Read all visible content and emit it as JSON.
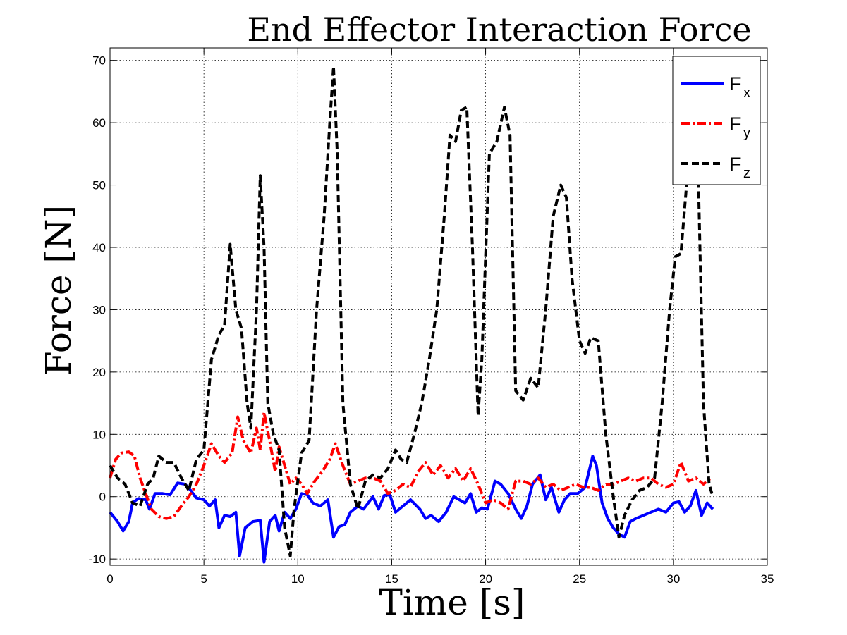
{
  "chart_data": {
    "type": "line",
    "title": "End Effector Interaction Force",
    "xlabel": "Time [s]",
    "ylabel": "Force [N]",
    "xlim": [
      0,
      35
    ],
    "ylim": [
      -11,
      72
    ],
    "xticks": [
      0,
      5,
      10,
      15,
      20,
      25,
      30,
      35
    ],
    "yticks": [
      -10,
      0,
      10,
      20,
      30,
      40,
      50,
      60,
      70
    ],
    "grid": true,
    "legend_position": "top-right",
    "series": [
      {
        "name": "Fx",
        "label_main": "F",
        "label_sub": "x",
        "color": "#0000ff",
        "dash": "solid",
        "points": [
          [
            0,
            -2.5
          ],
          [
            0.4,
            -4
          ],
          [
            0.7,
            -5.5
          ],
          [
            1,
            -4
          ],
          [
            1.2,
            -1
          ],
          [
            1.5,
            -0.3
          ],
          [
            1.9,
            -0.5
          ],
          [
            2.1,
            -2
          ],
          [
            2.4,
            0.5
          ],
          [
            2.8,
            0.5
          ],
          [
            3.2,
            0.3
          ],
          [
            3.6,
            2.2
          ],
          [
            4.0,
            2.0
          ],
          [
            4.3,
            1.0
          ],
          [
            4.6,
            -0.2
          ],
          [
            5.0,
            -0.5
          ],
          [
            5.3,
            -1.5
          ],
          [
            5.6,
            -0.5
          ],
          [
            5.8,
            -5.0
          ],
          [
            6.1,
            -3
          ],
          [
            6.4,
            -3.2
          ],
          [
            6.7,
            -2.5
          ],
          [
            6.9,
            -9.5
          ],
          [
            7.2,
            -5
          ],
          [
            7.6,
            -4.0
          ],
          [
            8.0,
            -3.8
          ],
          [
            8.2,
            -10.5
          ],
          [
            8.5,
            -4.0
          ],
          [
            8.8,
            -3.0
          ],
          [
            9.0,
            -5.5
          ],
          [
            9.3,
            -2.5
          ],
          [
            9.6,
            -3.5
          ],
          [
            9.9,
            -2.0
          ],
          [
            10.2,
            0.5
          ],
          [
            10.5,
            0.3
          ],
          [
            10.8,
            -1.0
          ],
          [
            11.2,
            -1.5
          ],
          [
            11.6,
            -0.5
          ],
          [
            11.9,
            -6.5
          ],
          [
            12.2,
            -4.8
          ],
          [
            12.5,
            -4.5
          ],
          [
            12.8,
            -2.5
          ],
          [
            13.2,
            -1.5
          ],
          [
            13.5,
            -2.0
          ],
          [
            14.0,
            0
          ],
          [
            14.3,
            -2.0
          ],
          [
            14.6,
            0.2
          ],
          [
            14.9,
            0.3
          ],
          [
            15.2,
            -2.5
          ],
          [
            15.6,
            -1.5
          ],
          [
            16.0,
            -0.5
          ],
          [
            16.5,
            -2.0
          ],
          [
            16.8,
            -3.5
          ],
          [
            17.1,
            -3.0
          ],
          [
            17.5,
            -4.0
          ],
          [
            17.9,
            -2.5
          ],
          [
            18.3,
            0
          ],
          [
            18.6,
            -0.5
          ],
          [
            18.9,
            -1.0
          ],
          [
            19.2,
            0.5
          ],
          [
            19.5,
            -2.5
          ],
          [
            19.8,
            -1.8
          ],
          [
            20.1,
            -2.0
          ],
          [
            20.5,
            2.5
          ],
          [
            20.8,
            2.0
          ],
          [
            21.2,
            0.5
          ],
          [
            21.6,
            -2.0
          ],
          [
            21.9,
            -3.5
          ],
          [
            22.2,
            -1.5
          ],
          [
            22.5,
            2.0
          ],
          [
            22.9,
            3.5
          ],
          [
            23.2,
            -0.5
          ],
          [
            23.5,
            1.5
          ],
          [
            23.9,
            -2.5
          ],
          [
            24.2,
            -0.5
          ],
          [
            24.5,
            0.5
          ],
          [
            24.9,
            0.5
          ],
          [
            25.3,
            1.5
          ],
          [
            25.7,
            6.5
          ],
          [
            25.9,
            5.0
          ],
          [
            26.2,
            -1.0
          ],
          [
            26.5,
            -3.5
          ],
          [
            26.8,
            -5.0
          ],
          [
            27.1,
            -6.0
          ],
          [
            27.4,
            -6.5
          ],
          [
            27.7,
            -4.0
          ],
          [
            28.0,
            -3.5
          ],
          [
            28.4,
            -3.0
          ],
          [
            28.8,
            -2.5
          ],
          [
            29.2,
            -2.0
          ],
          [
            29.6,
            -2.5
          ],
          [
            30.0,
            -1.0
          ],
          [
            30.3,
            -0.8
          ],
          [
            30.6,
            -2.5
          ],
          [
            30.9,
            -1.5
          ],
          [
            31.2,
            1.0
          ],
          [
            31.5,
            -3.0
          ],
          [
            31.8,
            -1.0
          ],
          [
            32.1,
            -2.0
          ]
        ]
      },
      {
        "name": "Fy",
        "label_main": "F",
        "label_sub": "y",
        "color": "#ff0000",
        "dash": "dashdot",
        "points": [
          [
            0,
            3
          ],
          [
            0.3,
            6
          ],
          [
            0.6,
            7
          ],
          [
            1.0,
            7.2
          ],
          [
            1.3,
            6.5
          ],
          [
            1.6,
            3
          ],
          [
            1.9,
            0.5
          ],
          [
            2.2,
            -2
          ],
          [
            2.6,
            -3.2
          ],
          [
            3.0,
            -3.5
          ],
          [
            3.4,
            -3.2
          ],
          [
            3.8,
            -1.5
          ],
          [
            4.2,
            0
          ],
          [
            4.6,
            2
          ],
          [
            5.0,
            5
          ],
          [
            5.4,
            8.5
          ],
          [
            5.8,
            6.5
          ],
          [
            6.1,
            5.5
          ],
          [
            6.5,
            7
          ],
          [
            6.8,
            12.8
          ],
          [
            7.1,
            9
          ],
          [
            7.5,
            7
          ],
          [
            7.8,
            11
          ],
          [
            8.0,
            7.5
          ],
          [
            8.2,
            13.5
          ],
          [
            8.5,
            9
          ],
          [
            8.8,
            4
          ],
          [
            9.0,
            8
          ],
          [
            9.3,
            5
          ],
          [
            9.6,
            2
          ],
          [
            9.9,
            3
          ],
          [
            10.2,
            2
          ],
          [
            10.5,
            0.5
          ],
          [
            10.9,
            2.5
          ],
          [
            11.3,
            4
          ],
          [
            11.7,
            6
          ],
          [
            12.0,
            8.5
          ],
          [
            12.4,
            5
          ],
          [
            12.8,
            2
          ],
          [
            13.2,
            2.5
          ],
          [
            13.6,
            3
          ],
          [
            14.0,
            3
          ],
          [
            14.4,
            2.5
          ],
          [
            14.8,
            0.5
          ],
          [
            15.2,
            1
          ],
          [
            15.6,
            2
          ],
          [
            16.0,
            1.5
          ],
          [
            16.4,
            4
          ],
          [
            16.8,
            5.5
          ],
          [
            17.2,
            3.5
          ],
          [
            17.6,
            5
          ],
          [
            18.0,
            3
          ],
          [
            18.4,
            4.5
          ],
          [
            18.8,
            2.5
          ],
          [
            19.2,
            4.5
          ],
          [
            19.6,
            2
          ],
          [
            20.0,
            -1
          ],
          [
            20.4,
            -0.5
          ],
          [
            20.8,
            -1
          ],
          [
            21.2,
            -2
          ],
          [
            21.6,
            2.5
          ],
          [
            22.0,
            2.5
          ],
          [
            22.4,
            2
          ],
          [
            22.8,
            3
          ],
          [
            23.2,
            1.5
          ],
          [
            23.6,
            2
          ],
          [
            24.0,
            1
          ],
          [
            24.4,
            1.5
          ],
          [
            24.8,
            2
          ],
          [
            25.2,
            1.5
          ],
          [
            25.6,
            1.5
          ],
          [
            26.0,
            1
          ],
          [
            26.4,
            2
          ],
          [
            26.8,
            2
          ],
          [
            27.2,
            2.5
          ],
          [
            27.6,
            3
          ],
          [
            28.0,
            2.5
          ],
          [
            28.4,
            3
          ],
          [
            28.8,
            3
          ],
          [
            29.2,
            2
          ],
          [
            29.6,
            1.5
          ],
          [
            30.0,
            2
          ],
          [
            30.4,
            5.5
          ],
          [
            30.8,
            2.5
          ],
          [
            31.2,
            3
          ],
          [
            31.6,
            2
          ],
          [
            32.0,
            3
          ]
        ]
      },
      {
        "name": "Fz",
        "label_main": "F",
        "label_sub": "z",
        "color": "#000000",
        "dash": "dashed",
        "points": [
          [
            0,
            5
          ],
          [
            0.4,
            3
          ],
          [
            0.8,
            2
          ],
          [
            1.2,
            -1
          ],
          [
            1.6,
            -1.5
          ],
          [
            2.0,
            2
          ],
          [
            2.3,
            3
          ],
          [
            2.6,
            6.5
          ],
          [
            3.0,
            5.5
          ],
          [
            3.4,
            5.5
          ],
          [
            3.8,
            3
          ],
          [
            4.2,
            1
          ],
          [
            4.6,
            6
          ],
          [
            5.0,
            7.5
          ],
          [
            5.4,
            22
          ],
          [
            5.8,
            26
          ],
          [
            6.1,
            27.5
          ],
          [
            6.4,
            40.5
          ],
          [
            6.7,
            30
          ],
          [
            7.0,
            27
          ],
          [
            7.3,
            15
          ],
          [
            7.5,
            11
          ],
          [
            7.8,
            30
          ],
          [
            8.0,
            51.5
          ],
          [
            8.2,
            40
          ],
          [
            8.4,
            15
          ],
          [
            8.7,
            10
          ],
          [
            9.0,
            7.5
          ],
          [
            9.3,
            -5
          ],
          [
            9.6,
            -9.5
          ],
          [
            9.8,
            -2
          ],
          [
            10.2,
            7
          ],
          [
            10.6,
            9
          ],
          [
            11.0,
            30
          ],
          [
            11.4,
            45
          ],
          [
            11.7,
            60
          ],
          [
            11.9,
            69
          ],
          [
            12.1,
            55
          ],
          [
            12.4,
            15
          ],
          [
            12.8,
            2
          ],
          [
            13.2,
            -2
          ],
          [
            13.6,
            2.5
          ],
          [
            14.0,
            3.5
          ],
          [
            14.4,
            3
          ],
          [
            14.8,
            4.5
          ],
          [
            15.2,
            7.5
          ],
          [
            15.5,
            6
          ],
          [
            15.8,
            5.5
          ],
          [
            16.2,
            10
          ],
          [
            16.6,
            15
          ],
          [
            17.0,
            22
          ],
          [
            17.4,
            30
          ],
          [
            17.8,
            45
          ],
          [
            18.1,
            58
          ],
          [
            18.4,
            57
          ],
          [
            18.7,
            62
          ],
          [
            19.0,
            62.5
          ],
          [
            19.3,
            40
          ],
          [
            19.6,
            13
          ],
          [
            19.8,
            22
          ],
          [
            20.2,
            55
          ],
          [
            20.6,
            57
          ],
          [
            21.0,
            62.5
          ],
          [
            21.3,
            58
          ],
          [
            21.6,
            17
          ],
          [
            22.0,
            15.5
          ],
          [
            22.4,
            19
          ],
          [
            22.8,
            17.5
          ],
          [
            23.2,
            30
          ],
          [
            23.6,
            45
          ],
          [
            24.0,
            50
          ],
          [
            24.3,
            48
          ],
          [
            24.6,
            35
          ],
          [
            25.0,
            25
          ],
          [
            25.3,
            23
          ],
          [
            25.6,
            25.5
          ],
          [
            26.0,
            25
          ],
          [
            26.4,
            10
          ],
          [
            26.8,
            0
          ],
          [
            27.1,
            -6.5
          ],
          [
            27.4,
            -3
          ],
          [
            27.8,
            -0.5
          ],
          [
            28.2,
            1
          ],
          [
            28.6,
            1.5
          ],
          [
            29.0,
            3
          ],
          [
            29.4,
            15
          ],
          [
            29.8,
            30
          ],
          [
            30.1,
            38.5
          ],
          [
            30.4,
            39
          ],
          [
            30.7,
            50
          ],
          [
            31.0,
            62
          ],
          [
            31.3,
            55
          ],
          [
            31.6,
            15
          ],
          [
            31.9,
            2
          ],
          [
            32.1,
            0
          ]
        ]
      }
    ]
  }
}
